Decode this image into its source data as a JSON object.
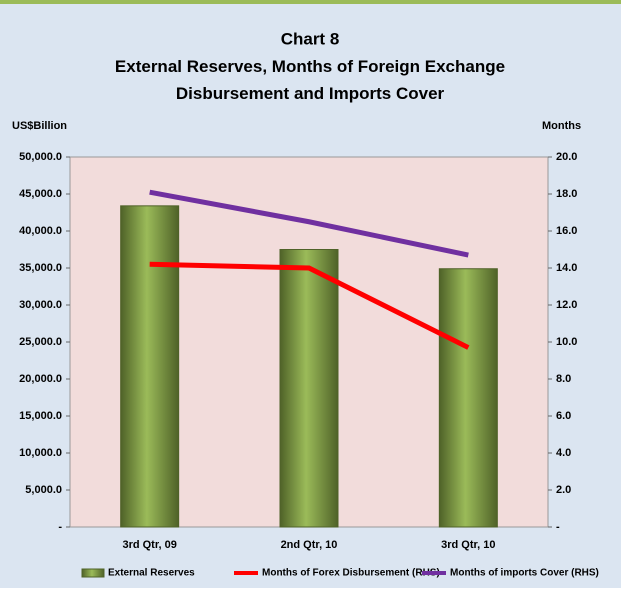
{
  "chart_data": {
    "type": "bar_line",
    "title": "Chart 8",
    "subtitle": "External Reserves, Months of Foreign Exchange Disbursement and Imports Cover",
    "y_label": "US$Billion",
    "y2_label": "Months",
    "categories": [
      "3rd Qtr, 09",
      "2nd Qtr, 10",
      "3rd Qtr, 10"
    ],
    "series": [
      {
        "name": "External Reserves",
        "type": "bar",
        "color": "#77933c",
        "values": [
          43400,
          37500,
          34900
        ]
      },
      {
        "name": "Months of Forex Disbursement (RHS)",
        "type": "line",
        "axis": "y2",
        "color": "#ff0000",
        "values": [
          14.2,
          14.0,
          9.7
        ]
      },
      {
        "name": "Months of imports Cover (RHS)",
        "type": "line",
        "axis": "y2",
        "color": "#7030a0",
        "values": [
          18.1,
          16.5,
          14.7
        ]
      }
    ],
    "ylim": [
      0,
      50000
    ],
    "yticks": [
      {
        "value": 0,
        "label": "-"
      },
      {
        "value": 5000,
        "label": "5,000.0"
      },
      {
        "value": 10000,
        "label": "10,000.0"
      },
      {
        "value": 15000,
        "label": "15,000.0"
      },
      {
        "value": 20000,
        "label": "20,000.0"
      },
      {
        "value": 25000,
        "label": "25,000.0"
      },
      {
        "value": 30000,
        "label": "30,000.0"
      },
      {
        "value": 35000,
        "label": "35,000.0"
      },
      {
        "value": 40000,
        "label": "40,000.0"
      },
      {
        "value": 45000,
        "label": "45,000.0"
      },
      {
        "value": 50000,
        "label": "50,000.0"
      }
    ],
    "y2lim": [
      0,
      20
    ],
    "y2ticks": [
      {
        "value": 0,
        "label": "-"
      },
      {
        "value": 2,
        "label": "2.0"
      },
      {
        "value": 4,
        "label": "4.0"
      },
      {
        "value": 6,
        "label": "6.0"
      },
      {
        "value": 8,
        "label": "8.0"
      },
      {
        "value": 10,
        "label": "10.0"
      },
      {
        "value": 12,
        "label": "12.0"
      },
      {
        "value": 14,
        "label": "14.0"
      },
      {
        "value": 16,
        "label": "16.0"
      },
      {
        "value": 18,
        "label": "18.0"
      },
      {
        "value": 20,
        "label": "20.0"
      }
    ],
    "legend": "bottom"
  }
}
